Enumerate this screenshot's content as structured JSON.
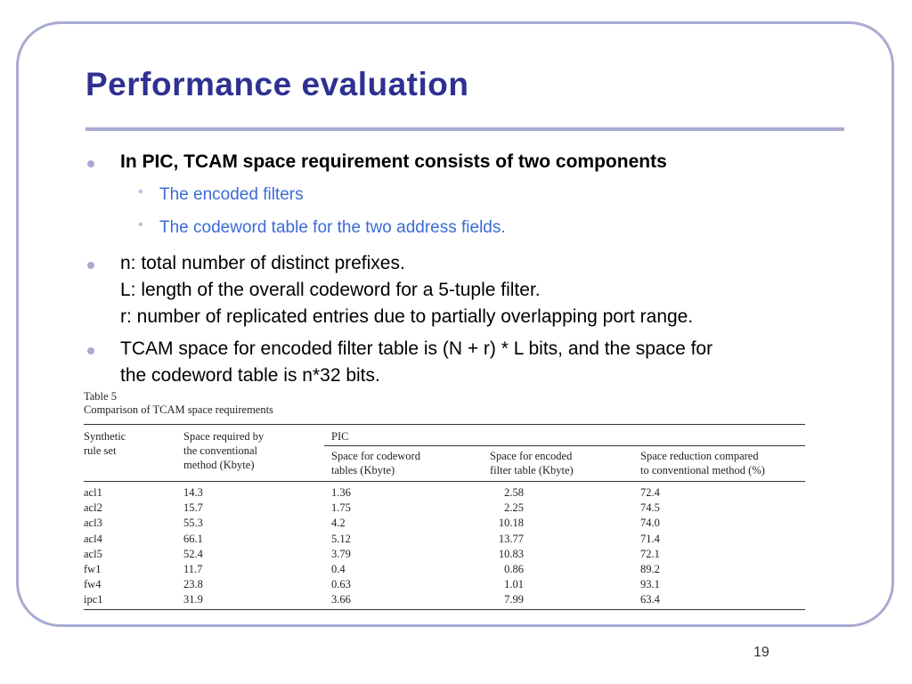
{
  "slide": {
    "title": "Performance evaluation",
    "page_number": "19"
  },
  "bullets": {
    "b1": "In PIC, TCAM space requirement consists of two components",
    "b1_sub": [
      "The encoded filters",
      "The codeword table for the two address fields."
    ],
    "b2_lines": [
      "n: total number of distinct prefixes.",
      "L: length of the overall codeword for a 5-tuple filter.",
      "r: number of replicated entries due to partially overlapping port range."
    ],
    "b3_lines": [
      "TCAM space for encoded filter table is (N + r) * L bits, and the space for",
      "the codeword table is n*32 bits."
    ]
  },
  "table": {
    "caption1": "Table 5",
    "caption2": "Comparison of TCAM space requirements",
    "headers": {
      "col1": [
        "Synthetic",
        "rule set"
      ],
      "col2": [
        "Space required by",
        "the conventional",
        "method (Kbyte)"
      ],
      "group": "PIC",
      "col3": [
        "Space for codeword",
        "tables (Kbyte)"
      ],
      "col4": [
        "Space for encoded",
        "filter table (Kbyte)"
      ],
      "col5": [
        "Space reduction compared",
        "to conventional method (%)"
      ]
    },
    "rows": [
      [
        "acl1",
        "14.3",
        "1.36",
        "2.58",
        "72.4"
      ],
      [
        "acl2",
        "15.7",
        "1.75",
        "2.25",
        "74.5"
      ],
      [
        "acl3",
        "55.3",
        "4.2",
        "10.18",
        "74.0"
      ],
      [
        "acl4",
        "66.1",
        "5.12",
        "13.77",
        "71.4"
      ],
      [
        "acl5",
        "52.4",
        "3.79",
        "10.83",
        "72.1"
      ],
      [
        "fw1",
        "11.7",
        "0.4",
        "0.86",
        "89.2"
      ],
      [
        "fw4",
        "23.8",
        "0.63",
        "1.01",
        "93.1"
      ],
      [
        "ipc1",
        "31.9",
        "3.66",
        "7.99",
        "63.4"
      ]
    ]
  },
  "colors": {
    "title": "#2e3192",
    "accent": "#a9abd3",
    "sub_bullet_text": "#3a6bd6"
  }
}
